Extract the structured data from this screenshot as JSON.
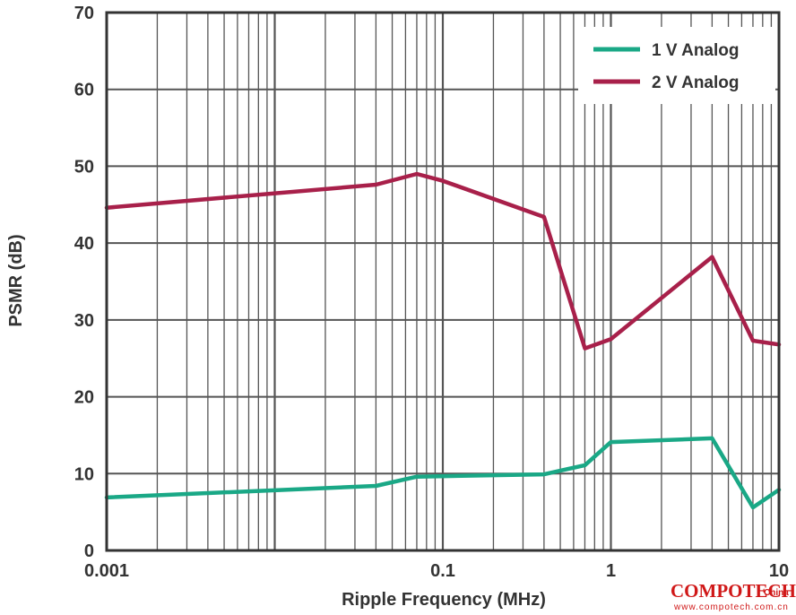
{
  "chart_data": {
    "type": "line",
    "xlabel": "Ripple Frequency (MHz)",
    "ylabel": "PSMR (dB)",
    "xscale": "log",
    "xlim": [
      0.001,
      10
    ],
    "ylim": [
      0,
      70
    ],
    "x_ticks": [
      {
        "value": 0.001,
        "label": "0.001"
      },
      {
        "value": 0.1,
        "label": "0.1"
      },
      {
        "value": 1,
        "label": "1"
      },
      {
        "value": 10,
        "label": "10"
      }
    ],
    "y_ticks": [
      {
        "value": 0,
        "label": "0"
      },
      {
        "value": 10,
        "label": "10"
      },
      {
        "value": 20,
        "label": "20"
      },
      {
        "value": 30,
        "label": "30"
      },
      {
        "value": 40,
        "label": "40"
      },
      {
        "value": 50,
        "label": "50"
      },
      {
        "value": 60,
        "label": "60"
      },
      {
        "value": 70,
        "label": "70"
      }
    ],
    "grid": true,
    "legend_position": "top-right",
    "series": [
      {
        "name": "1 V Analog",
        "color": "#1aa886",
        "points": [
          {
            "x": 0.001,
            "y": 6.9
          },
          {
            "x": 0.04,
            "y": 8.4
          },
          {
            "x": 0.07,
            "y": 9.6
          },
          {
            "x": 0.4,
            "y": 9.9
          },
          {
            "x": 0.7,
            "y": 11.1
          },
          {
            "x": 1.0,
            "y": 14.1
          },
          {
            "x": 4.0,
            "y": 14.6
          },
          {
            "x": 7.0,
            "y": 5.6
          },
          {
            "x": 10,
            "y": 7.9
          }
        ]
      },
      {
        "name": "2 V Analog",
        "color": "#a8204a",
        "points": [
          {
            "x": 0.001,
            "y": 44.6
          },
          {
            "x": 0.04,
            "y": 47.6
          },
          {
            "x": 0.07,
            "y": 49.0
          },
          {
            "x": 0.1,
            "y": 48.1
          },
          {
            "x": 0.4,
            "y": 43.4
          },
          {
            "x": 0.7,
            "y": 26.3
          },
          {
            "x": 1.0,
            "y": 27.5
          },
          {
            "x": 4.0,
            "y": 38.2
          },
          {
            "x": 7.0,
            "y": 27.3
          },
          {
            "x": 10,
            "y": 26.8
          }
        ]
      }
    ]
  },
  "watermark": {
    "brand": "COMPOTECH",
    "sub": "China",
    "url": "www.compotech.com.cn"
  }
}
